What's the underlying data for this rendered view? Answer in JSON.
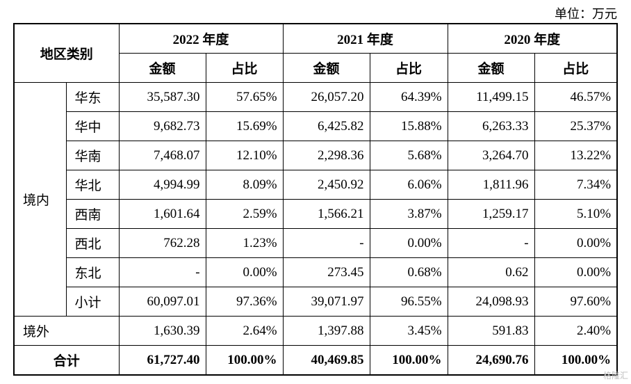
{
  "unit_label": "单位：万元",
  "header": {
    "region_type": "地区类别",
    "years": [
      "2022 年度",
      "2021 年度",
      "2020 年度"
    ],
    "amount": "金额",
    "ratio": "占比"
  },
  "domestic_label": "境内",
  "domestic_rows": [
    {
      "region": "华东",
      "v": [
        "35,587.30",
        "57.65%",
        "26,057.20",
        "64.39%",
        "11,499.15",
        "46.57%"
      ]
    },
    {
      "region": "华中",
      "v": [
        "9,682.73",
        "15.69%",
        "6,425.82",
        "15.88%",
        "6,263.33",
        "25.37%"
      ]
    },
    {
      "region": "华南",
      "v": [
        "7,468.07",
        "12.10%",
        "2,298.36",
        "5.68%",
        "3,264.70",
        "13.22%"
      ]
    },
    {
      "region": "华北",
      "v": [
        "4,994.99",
        "8.09%",
        "2,450.92",
        "6.06%",
        "1,811.96",
        "7.34%"
      ]
    },
    {
      "region": "西南",
      "v": [
        "1,601.64",
        "2.59%",
        "1,566.21",
        "3.87%",
        "1,259.17",
        "5.10%"
      ]
    },
    {
      "region": "西北",
      "v": [
        "762.28",
        "1.23%",
        "-",
        "0.00%",
        "-",
        "0.00%"
      ]
    },
    {
      "region": "东北",
      "v": [
        "-",
        "0.00%",
        "273.45",
        "0.68%",
        "0.62",
        "0.00%"
      ]
    },
    {
      "region": "小计",
      "v": [
        "60,097.01",
        "97.36%",
        "39,071.97",
        "96.55%",
        "24,098.93",
        "97.60%"
      ]
    }
  ],
  "overseas": {
    "region": "境外",
    "v": [
      "1,630.39",
      "2.64%",
      "1,397.88",
      "3.45%",
      "591.83",
      "2.40%"
    ]
  },
  "total": {
    "region": "合计",
    "v": [
      "61,727.40",
      "100.00%",
      "40,469.85",
      "100.00%",
      "24,690.76",
      "100.00%"
    ]
  },
  "watermark": "格隆汇"
}
